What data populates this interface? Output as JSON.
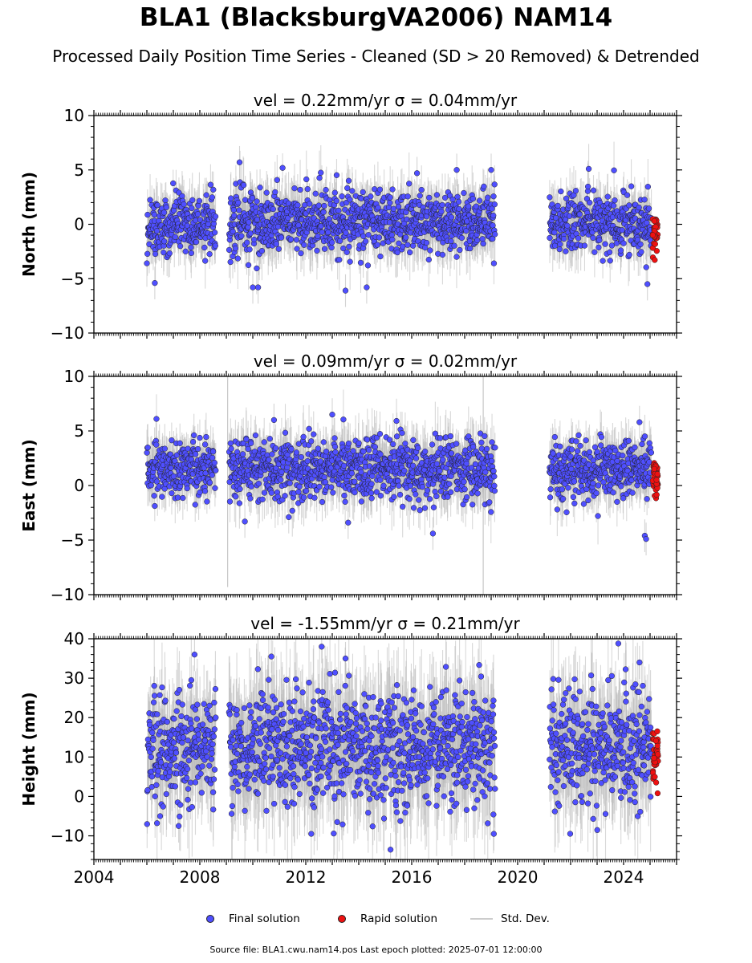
{
  "title": "BLA1 (BlacksburgVA2006) NAM14",
  "subtitle": "Processed Daily Position Time Series - Cleaned (SD > 20 Removed) & Detrended",
  "legend": {
    "final": "Final solution",
    "rapid": "Rapid solution",
    "std": "Std. Dev."
  },
  "footer": "Source file: BLA1.cwu.nam14.pos  Last epoch plotted: 2025-07-01 12:00:00",
  "colors": {
    "final": "#4f4fff",
    "rapid": "#ee1111",
    "std": "#b8b8b8",
    "edge": "#222222"
  },
  "chart_data": [
    {
      "type": "scatter",
      "panel": "north",
      "title": "vel = 0.22mm/yr   σ = 0.04mm/yr",
      "xlabel": "",
      "ylabel": "North (mm)",
      "xlim": [
        2004,
        2026
      ],
      "ylim": [
        -10,
        10
      ],
      "yticks": [
        -10,
        -5,
        0,
        5,
        10
      ],
      "xticks": [
        2004,
        2008,
        2012,
        2016,
        2020,
        2024
      ],
      "xtick_labels_shown": false,
      "segments": [
        {
          "start": 2006.0,
          "end": 2008.6,
          "level": 0.0,
          "spread": 1.3
        },
        {
          "start": 2009.1,
          "end": 2019.15,
          "level": 0.3,
          "spread": 1.4
        },
        {
          "start": 2021.2,
          "end": 2025.05,
          "level": 0.0,
          "spread": 1.3
        }
      ],
      "rapid": {
        "start": 2025.1,
        "end": 2025.3,
        "level": -0.9,
        "spread": 0.9
      },
      "outliers": [
        {
          "x": 2009.5,
          "y": 5.7
        },
        {
          "x": 2006.3,
          "y": -5.4
        },
        {
          "x": 2010.0,
          "y": -5.8
        },
        {
          "x": 2010.2,
          "y": -5.8
        },
        {
          "x": 2013.5,
          "y": -6.1
        },
        {
          "x": 2014.3,
          "y": -5.8
        },
        {
          "x": 2016.2,
          "y": 4.7
        },
        {
          "x": 2019.0,
          "y": 5.0
        },
        {
          "x": 2024.9,
          "y": -5.5
        },
        {
          "x": 2017.7,
          "y": 5.0
        }
      ]
    },
    {
      "type": "scatter",
      "panel": "east",
      "title": "vel = 0.09mm/yr   σ = 0.02mm/yr",
      "xlabel": "",
      "ylabel": "East (mm)",
      "xlim": [
        2004,
        2026
      ],
      "ylim": [
        -10,
        10
      ],
      "yticks": [
        -10,
        -5,
        0,
        5,
        10
      ],
      "xticks": [
        2004,
        2008,
        2012,
        2016,
        2020,
        2024
      ],
      "xtick_labels_shown": false,
      "segments": [
        {
          "start": 2006.0,
          "end": 2008.6,
          "level": 1.6,
          "spread": 1.2
        },
        {
          "start": 2009.1,
          "end": 2019.15,
          "level": 1.5,
          "spread": 1.4
        },
        {
          "start": 2021.2,
          "end": 2025.05,
          "level": 1.5,
          "spread": 1.3
        }
      ],
      "rapid": {
        "start": 2025.1,
        "end": 2025.3,
        "level": 0.8,
        "spread": 0.9
      },
      "outliers": [
        {
          "x": 2013.0,
          "y": 6.5
        },
        {
          "x": 2016.8,
          "y": -4.4
        },
        {
          "x": 2024.8,
          "y": -4.6
        },
        {
          "x": 2024.85,
          "y": -4.9
        },
        {
          "x": 2010.8,
          "y": 6.0
        },
        {
          "x": 2009.7,
          "y": -3.3
        },
        {
          "x": 2013.6,
          "y": -3.4
        },
        {
          "x": 2024.6,
          "y": 5.8
        }
      ],
      "spikes": [
        {
          "x": 2009.05,
          "y1": -9.3,
          "y2": 10.0
        },
        {
          "x": 2018.7,
          "y1": -10.0,
          "y2": 10.0
        }
      ]
    },
    {
      "type": "scatter",
      "panel": "height",
      "title": "vel = -1.55mm/yr   σ = 0.21mm/yr",
      "xlabel": "",
      "ylabel": "Height (mm)",
      "xlim": [
        2004,
        2026
      ],
      "ylim": [
        -16,
        40
      ],
      "yticks": [
        -10,
        0,
        10,
        20,
        30,
        40
      ],
      "xticks": [
        2004,
        2008,
        2012,
        2016,
        2020,
        2024
      ],
      "xtick_labels_shown": true,
      "segments": [
        {
          "start": 2006.0,
          "end": 2008.6,
          "level": 13.0,
          "spread": 6.5
        },
        {
          "start": 2009.1,
          "end": 2019.15,
          "level": 12.5,
          "spread": 7.5
        },
        {
          "start": 2021.2,
          "end": 2025.05,
          "level": 13.0,
          "spread": 7.0
        }
      ],
      "rapid": {
        "start": 2025.1,
        "end": 2025.3,
        "level": 11.0,
        "spread": 3.5
      },
      "outliers": [
        {
          "x": 2007.8,
          "y": 36.0
        },
        {
          "x": 2012.6,
          "y": 38.0
        },
        {
          "x": 2015.2,
          "y": -13.5
        },
        {
          "x": 2023.8,
          "y": 38.8
        },
        {
          "x": 2010.7,
          "y": 35.5
        },
        {
          "x": 2006.5,
          "y": -5.0
        },
        {
          "x": 2007.2,
          "y": -7.5
        },
        {
          "x": 2019.1,
          "y": -9.5
        },
        {
          "x": 2024.6,
          "y": 34.0
        },
        {
          "x": 2013.5,
          "y": 35.0
        }
      ]
    }
  ]
}
